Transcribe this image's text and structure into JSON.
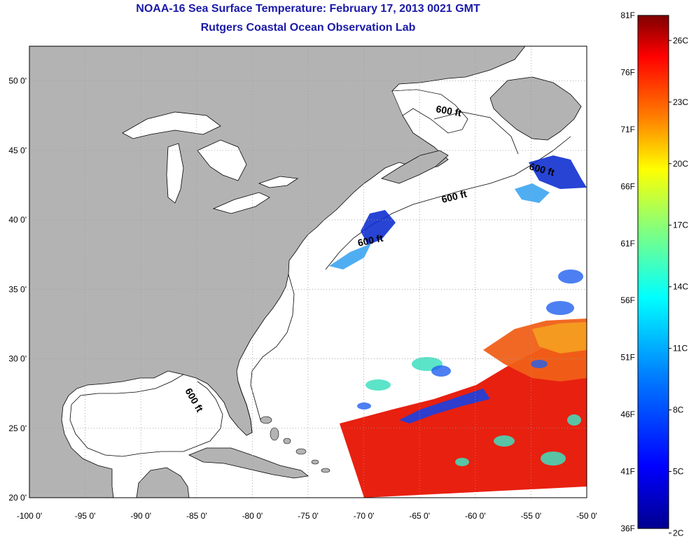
{
  "title": {
    "line1": "NOAA-16 Sea Surface Temperature:  February 17, 2013 0021 GMT",
    "line2": "Rutgers Coastal Ocean Observation Lab"
  },
  "map": {
    "lon_range": [
      -100,
      -50
    ],
    "lat_range": [
      20,
      52.5
    ],
    "lon_ticks": [
      {
        "v": -100,
        "label": "-100 0'"
      },
      {
        "v": -95,
        "label": "-95 0'"
      },
      {
        "v": -90,
        "label": "-90 0'"
      },
      {
        "v": -85,
        "label": "-85 0'"
      },
      {
        "v": -80,
        "label": "-80 0'"
      },
      {
        "v": -75,
        "label": "-75 0'"
      },
      {
        "v": -70,
        "label": "-70 0'"
      },
      {
        "v": -65,
        "label": "-65 0'"
      },
      {
        "v": -60,
        "label": "-60 0'"
      },
      {
        "v": -55,
        "label": "-55 0'"
      },
      {
        "v": -50,
        "label": "-50 0'"
      }
    ],
    "lat_ticks": [
      {
        "v": 20,
        "label": "20 0'"
      },
      {
        "v": 25,
        "label": "25 0'"
      },
      {
        "v": 30,
        "label": "30 0'"
      },
      {
        "v": 35,
        "label": "35 0'"
      },
      {
        "v": 40,
        "label": "40 0'"
      },
      {
        "v": 45,
        "label": "45 0'"
      },
      {
        "v": 50,
        "label": "50 0'"
      }
    ],
    "contour_labels": [
      "600 ft",
      "600 ft",
      "600 ft",
      "600 ft",
      "600 ft"
    ],
    "colors": {
      "land": "#b3b3b3",
      "ocean": "#ffffff",
      "grid": "#999999",
      "title": "#1a1aa8"
    }
  },
  "colorbar": {
    "fahrenheit": [
      "81F",
      "76F",
      "71F",
      "66F",
      "61F",
      "56F",
      "51F",
      "46F",
      "41F",
      "36F"
    ],
    "celsius": [
      "26C",
      "23C",
      "20C",
      "17C",
      "14C",
      "11C",
      "8C",
      "5C",
      "2C"
    ],
    "stops": [
      "#7f0000",
      "#ff0000",
      "#ff8000",
      "#ffff00",
      "#80ff80",
      "#00ffff",
      "#0080ff",
      "#0000ff",
      "#00008f"
    ]
  }
}
